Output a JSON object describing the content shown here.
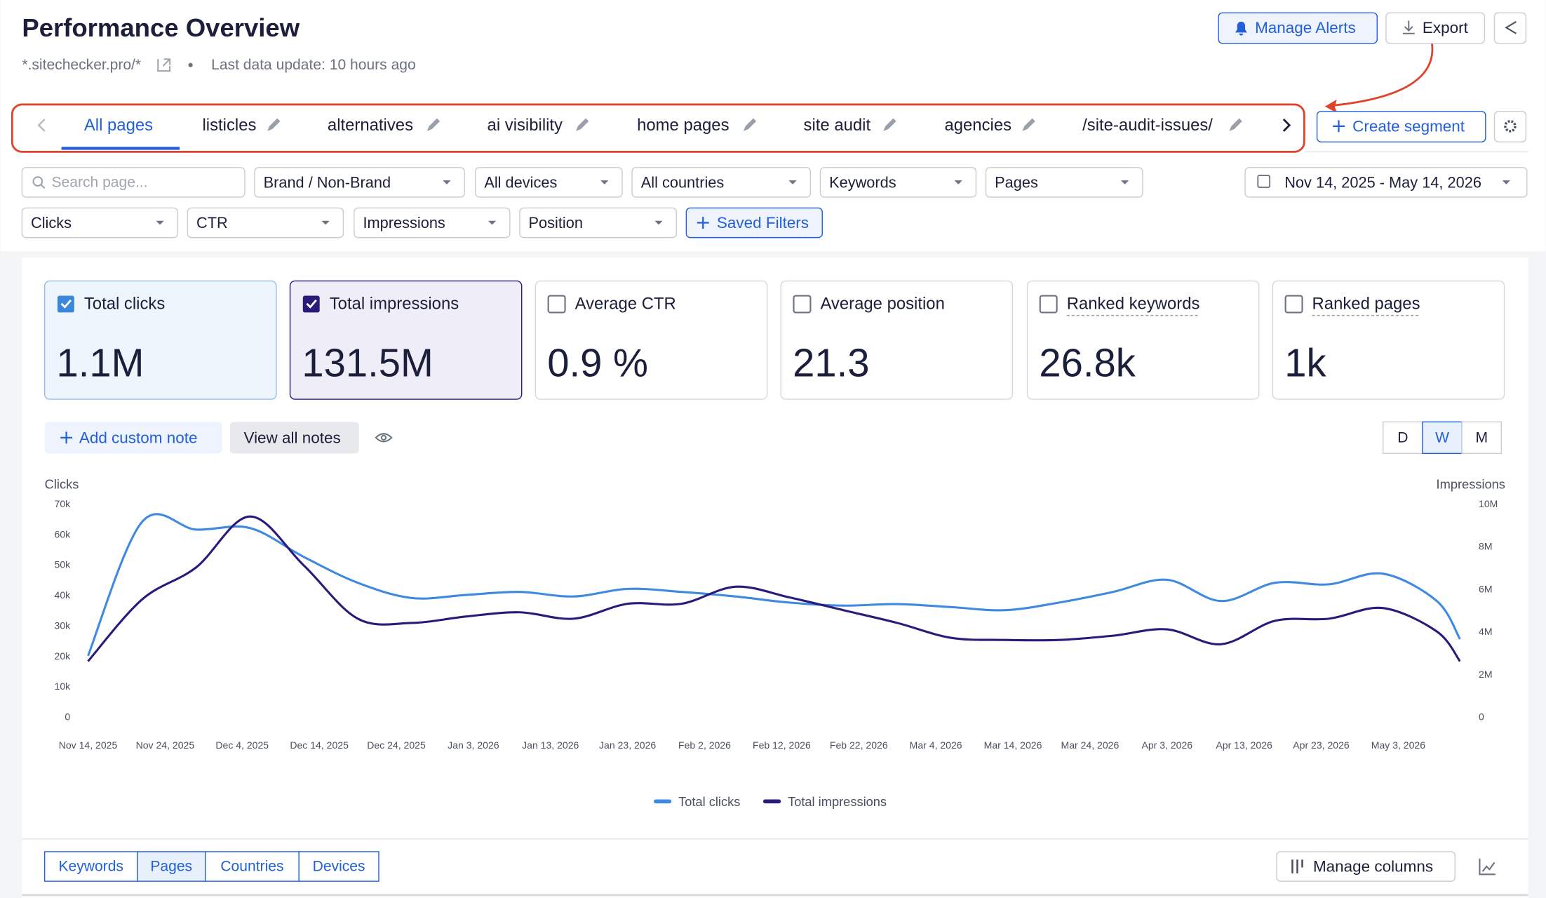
{
  "header": {
    "title": "Performance Overview",
    "site": "*.sitechecker.pro/*",
    "last_update": "Last data update: 10 hours ago",
    "alerts": "Manage Alerts",
    "export": "Export"
  },
  "segments": {
    "tabs": [
      "All pages",
      "listicles",
      "alternatives",
      "ai visibility",
      "home pages",
      "site audit",
      "agencies",
      "/site-audit-issues/"
    ],
    "active": 0,
    "create": "Create segment"
  },
  "filters": {
    "search": "Search page...",
    "row1": [
      "Brand / Non-Brand",
      "All devices",
      "All countries",
      "Keywords",
      "Pages"
    ],
    "row2": [
      "Clicks",
      "CTR",
      "Impressions",
      "Position"
    ],
    "saved": "Saved Filters",
    "date_range": "Nov 14, 2025 - May 14, 2026"
  },
  "metrics": [
    {
      "label": "Total clicks",
      "value": "1.1M",
      "checked": true
    },
    {
      "label": "Total impressions",
      "value": "131.5M",
      "checked": true
    },
    {
      "label": "Average CTR",
      "value": "0.9 %",
      "checked": false
    },
    {
      "label": "Average position",
      "value": "21.3",
      "checked": false
    },
    {
      "label": "Ranked keywords",
      "value": "26.8k",
      "checked": false
    },
    {
      "label": "Ranked pages",
      "value": "1k",
      "checked": false
    }
  ],
  "notes": {
    "add": "Add custom note",
    "view": "View all notes"
  },
  "granularity": {
    "options": [
      "D",
      "W",
      "M"
    ],
    "active": 1
  },
  "chart_data": {
    "type": "line",
    "y_label": "Clicks",
    "y2_label": "Impressions",
    "x": [
      "Nov 14, 2025",
      "Nov 21, 2025",
      "Nov 28, 2025",
      "Dec 5, 2025",
      "Dec 12, 2025",
      "Dec 19, 2025",
      "Dec 26, 2025",
      "Jan 2, 2026",
      "Jan 9, 2026",
      "Jan 16, 2026",
      "Jan 23, 2026",
      "Jan 30, 2026",
      "Feb 6, 2026",
      "Feb 13, 2026",
      "Feb 20, 2026",
      "Feb 27, 2026",
      "Mar 6, 2026",
      "Mar 13, 2026",
      "Mar 20, 2026",
      "Mar 27, 2026",
      "Apr 3, 2026",
      "Apr 10, 2026",
      "Apr 17, 2026",
      "Apr 24, 2026",
      "May 1, 2026",
      "May 8, 2026",
      "May 11, 2026"
    ],
    "series": [
      {
        "name": "Total clicks",
        "color": "#3f8ae0",
        "values": [
          20000,
          64000,
          61500,
          62000,
          52500,
          44000,
          39000,
          40000,
          41000,
          39500,
          42000,
          41000,
          39500,
          37500,
          36500,
          37000,
          36000,
          35000,
          37500,
          41000,
          45000,
          38000,
          44000,
          43500,
          47000,
          38000,
          25500
        ]
      },
      {
        "name": "Total impressions",
        "color": "#2a1a7a",
        "axis": "y2",
        "values": [
          2600000,
          5500000,
          7000000,
          9400000,
          7100000,
          4600000,
          4400000,
          4700000,
          4900000,
          4600000,
          5300000,
          5300000,
          6100000,
          5600000,
          5000000,
          4400000,
          3700000,
          3600000,
          3600000,
          3800000,
          4100000,
          3400000,
          4500000,
          4600000,
          5100000,
          4000000,
          2600000
        ]
      }
    ],
    "xlim": [
      "Nov 14, 2025",
      "May 11, 2026"
    ],
    "xticks": [
      "Nov 14, 2025",
      "Nov 24, 2025",
      "Dec 4, 2025",
      "Dec 14, 2025",
      "Dec 24, 2025",
      "Jan 3, 2026",
      "Jan 13, 2026",
      "Jan 23, 2026",
      "Feb 2, 2026",
      "Feb 12, 2026",
      "Feb 22, 2026",
      "Mar 4, 2026",
      "Mar 14, 2026",
      "Mar 24, 2026",
      "Apr 3, 2026",
      "Apr 13, 2026",
      "Apr 23, 2026",
      "May 3, 2026"
    ],
    "ylim": [
      0,
      70000
    ],
    "yticks": [
      0,
      {
        "value": 10000,
        "label": "10k"
      },
      {
        "value": 20000,
        "label": "20k"
      },
      {
        "value": 30000,
        "label": "30k"
      },
      {
        "value": 40000,
        "label": "40k"
      },
      {
        "value": 50000,
        "label": "50k"
      },
      {
        "value": 60000,
        "label": "60k"
      },
      {
        "value": 70000,
        "label": "70k"
      }
    ],
    "y2lim": [
      0,
      10000000
    ],
    "y2ticks": [
      0,
      {
        "value": 2000000,
        "label": "2M"
      },
      {
        "value": 4000000,
        "label": "4M"
      },
      {
        "value": 6000000,
        "label": "6M"
      },
      {
        "value": 8000000,
        "label": "8M"
      },
      {
        "value": 10000000,
        "label": "10M"
      }
    ],
    "grid": false,
    "legend": "bottom"
  },
  "bottom_tabs": {
    "tabs": [
      "Keywords",
      "Pages",
      "Countries",
      "Devices"
    ],
    "active": 1,
    "manage": "Manage columns"
  }
}
